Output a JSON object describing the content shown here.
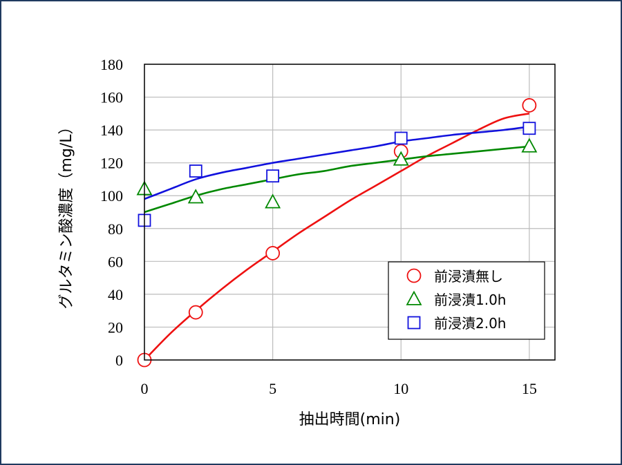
{
  "chart_data": {
    "type": "scatter",
    "xlabel": "抽出時間(min)",
    "ylabel": "グルタミン酸濃度（mg/L）",
    "xlim": [
      0,
      16
    ],
    "ylim": [
      0,
      180
    ],
    "xticks": [
      0,
      5,
      10,
      15
    ],
    "yticks": [
      0,
      20,
      40,
      60,
      80,
      100,
      120,
      140,
      160,
      180
    ],
    "grid": true,
    "legend_position": "bottom-right",
    "series": [
      {
        "name": "前浸漬無し",
        "marker": "circle",
        "color": "#ee1111",
        "x": [
          0,
          2,
          5,
          10,
          15
        ],
        "y": [
          0,
          29,
          65,
          127,
          155
        ],
        "fit_line": [
          [
            0,
            0
          ],
          [
            1,
            16
          ],
          [
            2,
            30
          ],
          [
            3,
            43
          ],
          [
            4,
            55
          ],
          [
            5,
            66
          ],
          [
            6,
            77
          ],
          [
            7,
            87
          ],
          [
            8,
            97
          ],
          [
            9,
            106
          ],
          [
            10,
            115
          ],
          [
            11,
            124
          ],
          [
            12,
            132
          ],
          [
            13,
            140
          ],
          [
            14,
            147
          ],
          [
            15,
            150
          ]
        ]
      },
      {
        "name": "前浸漬1.0h",
        "marker": "triangle",
        "color": "#008800",
        "x": [
          0,
          2,
          5,
          10,
          15
        ],
        "y": [
          104,
          99,
          96,
          122,
          130
        ],
        "fit_line": [
          [
            0,
            90
          ],
          [
            1,
            95
          ],
          [
            2,
            100
          ],
          [
            3,
            104
          ],
          [
            4,
            107
          ],
          [
            5,
            110
          ],
          [
            6,
            113
          ],
          [
            7,
            115
          ],
          [
            8,
            118
          ],
          [
            9,
            120
          ],
          [
            10,
            122
          ],
          [
            11,
            124
          ],
          [
            12,
            125.5
          ],
          [
            13,
            127
          ],
          [
            14,
            128.5
          ],
          [
            15,
            130
          ]
        ]
      },
      {
        "name": "前浸漬2.0h",
        "marker": "square",
        "color": "#1111dd",
        "x": [
          0,
          2,
          5,
          10,
          15
        ],
        "y": [
          85,
          115,
          112,
          135,
          141
        ],
        "fit_line": [
          [
            0,
            98
          ],
          [
            1,
            104
          ],
          [
            2,
            110
          ],
          [
            3,
            114
          ],
          [
            4,
            117
          ],
          [
            5,
            120
          ],
          [
            6,
            122.5
          ],
          [
            7,
            125
          ],
          [
            8,
            127.5
          ],
          [
            9,
            130
          ],
          [
            10,
            133
          ],
          [
            11,
            135
          ],
          [
            12,
            137
          ],
          [
            13,
            138.5
          ],
          [
            14,
            140
          ],
          [
            15,
            142
          ]
        ]
      }
    ]
  }
}
